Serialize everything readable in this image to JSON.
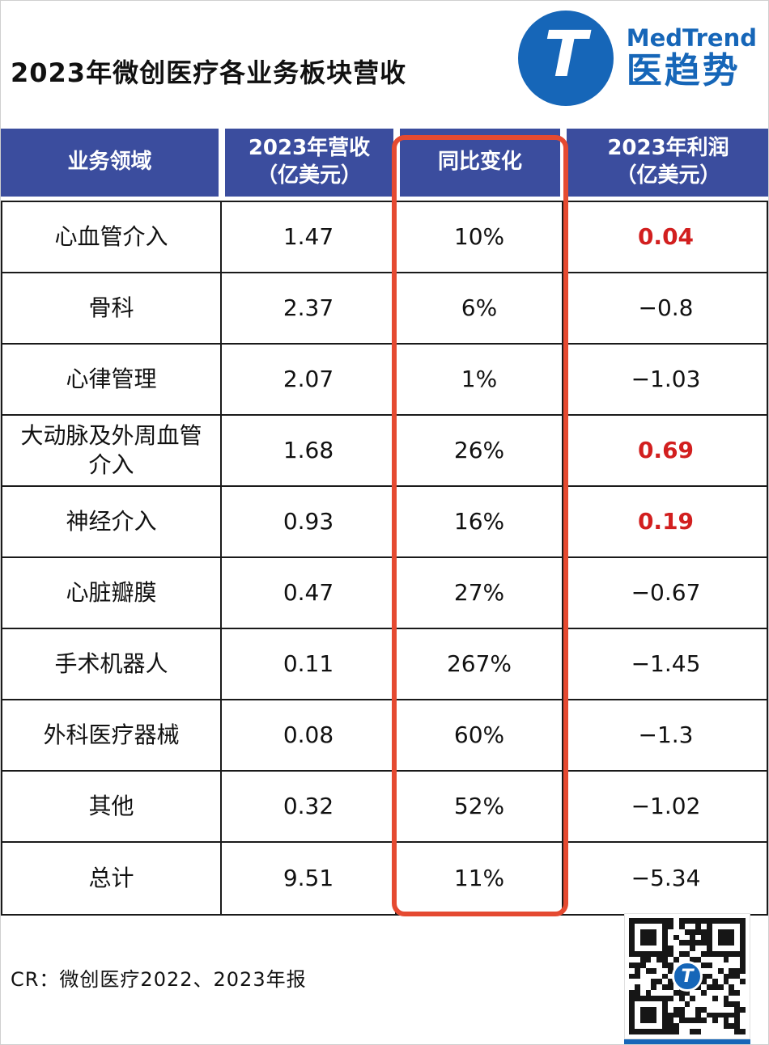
{
  "header": {
    "title": "2023年微创医疗各业务板块营收",
    "logo": {
      "glyph": "T",
      "brand_en": "MedTrend",
      "brand_cn": "医趋势"
    }
  },
  "chart_data": {
    "type": "table",
    "title": "2023年微创医疗各业务板块营收",
    "columns": [
      {
        "line1": "业务领域",
        "line2": ""
      },
      {
        "line1": "2023年营收",
        "line2": "（亿美元）"
      },
      {
        "line1": "同比变化",
        "line2": ""
      },
      {
        "line1": "2023年利润",
        "line2": "（亿美元）"
      }
    ],
    "highlight": {
      "column": "同比变化",
      "style": "red-rounded-box"
    },
    "rows": [
      {
        "segment": "心血管介入",
        "revenue": "1.47",
        "yoy": "10%",
        "profit": "0.04",
        "profit_color": "red"
      },
      {
        "segment": "骨科",
        "revenue": "2.37",
        "yoy": "6%",
        "profit": "−0.8",
        "profit_color": "black"
      },
      {
        "segment": "心律管理",
        "revenue": "2.07",
        "yoy": "1%",
        "profit": "−1.03",
        "profit_color": "black"
      },
      {
        "segment": "大动脉及外周血管介入",
        "revenue": "1.68",
        "yoy": "26%",
        "profit": "0.69",
        "profit_color": "red"
      },
      {
        "segment": "神经介入",
        "revenue": "0.93",
        "yoy": "16%",
        "profit": "0.19",
        "profit_color": "red"
      },
      {
        "segment": "心脏瓣膜",
        "revenue": "0.47",
        "yoy": "27%",
        "profit": "−0.67",
        "profit_color": "black"
      },
      {
        "segment": "手术机器人",
        "revenue": "0.11",
        "yoy": "267%",
        "profit": "−1.45",
        "profit_color": "black"
      },
      {
        "segment": "外科医疗器械",
        "revenue": "0.08",
        "yoy": "60%",
        "profit": "−1.3",
        "profit_color": "black"
      },
      {
        "segment": "其他",
        "revenue": "0.32",
        "yoy": "52%",
        "profit": "−1.02",
        "profit_color": "black"
      },
      {
        "segment": "总计",
        "revenue": "9.51",
        "yoy": "11%",
        "profit": "−5.34",
        "profit_color": "black"
      }
    ]
  },
  "footer": {
    "source": "CR：微创医疗2022、2023年报",
    "qr_center_glyph": "T"
  },
  "colors": {
    "header_bg": "#3b4d9e",
    "table_border": "#1a1a1a",
    "highlight_red": "#e54a31",
    "positive_red": "#d21f1f",
    "brand_blue": "#1666b8",
    "text_black": "#111111"
  }
}
